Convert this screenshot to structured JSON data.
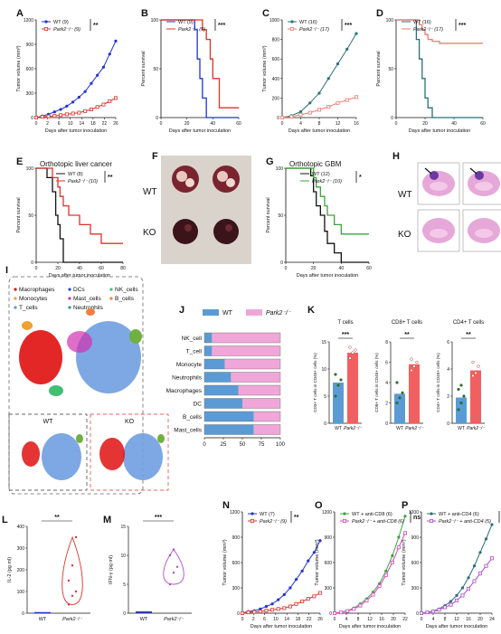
{
  "colors": {
    "wt_blue": "#1f33d6",
    "park2_red": "#e0312a",
    "wt_teal": "#2b6f7a",
    "park2_salmon": "#f07a70",
    "wt_dark": "#111111",
    "park2_green": "#3aa63a",
    "bar_blue": "#5b9bd5",
    "bar_pink": "#f0a6d8",
    "dot_green": "#2d6e2d",
    "violet": "#b04ad0",
    "tsne_red": "#e01010",
    "tsne_blue": "#6f9ee0"
  },
  "panels": {
    "A": {
      "label": "A",
      "legend": [
        "WT (9)",
        "Park2-/- (9)"
      ],
      "sig": "**",
      "ylabel": "Tumor volume (mm³)",
      "xlabel": "Days after tumor inoculation",
      "xticks": [
        "0",
        "2",
        "6",
        "10",
        "14",
        "18",
        "22",
        "26"
      ],
      "yticks": [
        "0",
        "300",
        "600",
        "900",
        "1200"
      ]
    },
    "B": {
      "label": "B",
      "legend": [
        "WT (9)",
        "Park2-/- (9)"
      ],
      "sig": "***",
      "ylabel": "Percent survival",
      "xlabel": "Days after tumor inoculation",
      "xticks": [
        "0",
        "20",
        "40",
        "60"
      ],
      "yticks": [
        "0",
        "50",
        "100"
      ]
    },
    "C": {
      "label": "C",
      "legend": [
        "WT (16)",
        "Park2-/- (17)"
      ],
      "sig": "***",
      "ylabel": "Tumor volume (mm³)",
      "xlabel": "Days after tumor inoculation",
      "xticks": [
        "0",
        "4",
        "8",
        "12",
        "16"
      ],
      "yticks": [
        "0",
        "200",
        "400",
        "600",
        "800",
        "1000"
      ]
    },
    "D": {
      "label": "D",
      "legend": [
        "WT (16)",
        "Park2-/- (17)"
      ],
      "sig": "***",
      "ylabel": "Percent survival",
      "xlabel": "Days after tumor inoculation",
      "xticks": [
        "0",
        "20",
        "40",
        "60"
      ],
      "yticks": [
        "0",
        "50",
        "100"
      ]
    },
    "E": {
      "label": "E",
      "title": "Orthotopic liver cancer",
      "legend": [
        "WT (8)",
        "Park2-/- (10)"
      ],
      "sig": "**",
      "ylabel": "Percent survival",
      "xlabel": "Days after tumor inoculation",
      "xticks": [
        "0",
        "20",
        "40",
        "60",
        "80"
      ],
      "yticks": [
        "0",
        "50",
        "100"
      ]
    },
    "F": {
      "label": "F",
      "rows": [
        "WT",
        "KO"
      ]
    },
    "G": {
      "label": "G",
      "title": "Orthotopic GBM",
      "legend": [
        "WT (12)",
        "Park2-/- (10)"
      ],
      "sig": "*",
      "ylabel": "Percent survival",
      "xlabel": "Days after tumor inoculation",
      "xticks": [
        "0",
        "20",
        "40",
        "60"
      ],
      "yticks": [
        "0",
        "50",
        "100"
      ]
    },
    "H": {
      "label": "H",
      "rows": [
        "WT",
        "KO"
      ]
    },
    "I": {
      "label": "I",
      "clusters": [
        "Macrophages",
        "DCs",
        "NK_cells",
        "Monocytes",
        "Mast_cells",
        "B_cells",
        "T_cells",
        "Neutrophils"
      ],
      "sub": [
        "WT",
        "KO"
      ]
    },
    "J": {
      "label": "J",
      "legend": [
        "WT",
        "Park2-/-"
      ],
      "xticks": [
        "0",
        "25",
        "50",
        "75",
        "100"
      ]
    },
    "K": {
      "label": "K",
      "sub1": {
        "title": "T cells",
        "ylabel": "CD3+ T cells in CD45+ cells (%)",
        "sig": "***",
        "yticks": [
          "0",
          "5",
          "10",
          "15"
        ],
        "cats": [
          "WT",
          "Park2-/-"
        ]
      },
      "sub2": {
        "title": "CD8+ T cells",
        "ylabel": "CD8+ T cells in CD45+ cells (%)",
        "sig": "**",
        "yticks": [
          "0",
          "2",
          "4",
          "6",
          "8"
        ],
        "cats": [
          "WT",
          "Park2-/-"
        ]
      },
      "sub3": {
        "title": "CD4+ T cells",
        "ylabel": "CD4+ T cells in CD45+ cells (%)",
        "sig": "**",
        "yticks": [
          "0",
          "2",
          "4",
          "6"
        ],
        "cats": [
          "WT",
          "Park2-/-"
        ]
      }
    },
    "L": {
      "label": "L",
      "sig": "**",
      "ylabel": "IL-2 (pg ml)",
      "yticks": [
        "0",
        "100",
        "200",
        "300",
        "400"
      ],
      "cats": [
        "WT",
        "Park2-/-"
      ]
    },
    "M": {
      "label": "M",
      "sig": "***",
      "ylabel": "IFN-γ (pg ml)",
      "yticks": [
        "0",
        "5",
        "10",
        "15"
      ],
      "cats": [
        "WT",
        "Park2-/-"
      ]
    },
    "N": {
      "label": "N",
      "legend": [
        "WT (7)",
        "Park2-/- (9)"
      ],
      "sig": "**",
      "ylabel": "Tumor volume (mm³)",
      "xlabel": "Days after tumor inoculation",
      "xticks": [
        "0",
        "2",
        "6",
        "10",
        "14",
        "18",
        "22",
        "26"
      ],
      "yticks": [
        "0",
        "300",
        "600",
        "900",
        "1200"
      ]
    },
    "O": {
      "label": "O",
      "legend": [
        "WT + anti-CD8 (6)",
        "Park2-/- + anti-CD8 (6)"
      ],
      "sig": "ns",
      "ylabel": "Tumor volume (mm³)",
      "xlabel": "Days after tumor inoculation",
      "xticks": [
        "0",
        "4",
        "8",
        "12",
        "16",
        "20",
        "22"
      ],
      "yticks": [
        "0",
        "300",
        "600",
        "900",
        "1200"
      ]
    },
    "P": {
      "label": "P",
      "legend": [
        "WT + anti-CD4 (6)",
        "Park2-/- + anti-CD4 (5)"
      ],
      "sig": "*",
      "ylabel": "Tumor volume (mm³)",
      "xlabel": "Days after tumor inoculation",
      "xticks": [
        "0",
        "4",
        "8",
        "12",
        "16",
        "20",
        "24"
      ],
      "yticks": [
        "0",
        "300",
        "600",
        "900",
        "1200"
      ]
    }
  },
  "chart_data": [
    {
      "panel": "A",
      "type": "line",
      "x": [
        0,
        2,
        4,
        6,
        8,
        10,
        12,
        14,
        16,
        18,
        20,
        22,
        24,
        26
      ],
      "series": [
        {
          "name": "WT (9)",
          "values": [
            0,
            20,
            40,
            70,
            100,
            140,
            190,
            250,
            320,
            420,
            520,
            620,
            780,
            940
          ]
        },
        {
          "name": "Park2-/- (9)",
          "values": [
            0,
            10,
            15,
            20,
            30,
            40,
            50,
            60,
            80,
            100,
            130,
            160,
            200,
            240
          ]
        }
      ],
      "ylim": [
        0,
        1200
      ],
      "xlim": [
        0,
        26
      ]
    },
    {
      "panel": "B",
      "type": "line",
      "x": [
        0,
        25,
        26,
        28,
        30,
        32,
        35,
        38,
        40,
        45,
        60
      ],
      "series": [
        {
          "name": "WT (9)",
          "values": [
            100,
            100,
            90,
            60,
            40,
            20,
            0,
            0,
            0,
            0,
            0
          ]
        },
        {
          "name": "Park2-/- (9)",
          "values": [
            100,
            100,
            100,
            100,
            100,
            90,
            80,
            60,
            40,
            10,
            10
          ]
        }
      ],
      "ylim": [
        0,
        100
      ],
      "xlim": [
        0,
        60
      ]
    },
    {
      "panel": "C",
      "type": "line",
      "x": [
        0,
        2,
        4,
        6,
        8,
        10,
        12,
        14,
        16
      ],
      "series": [
        {
          "name": "WT (16)",
          "values": [
            0,
            20,
            60,
            150,
            250,
            400,
            550,
            700,
            860
          ]
        },
        {
          "name": "Park2-/- (17)",
          "values": [
            0,
            10,
            30,
            50,
            80,
            110,
            150,
            180,
            210
          ]
        }
      ],
      "ylim": [
        0,
        1000
      ],
      "xlim": [
        0,
        16
      ]
    },
    {
      "panel": "D",
      "type": "line",
      "x": [
        0,
        10,
        14,
        16,
        18,
        20,
        22,
        25,
        30,
        60
      ],
      "series": [
        {
          "name": "WT (16)",
          "values": [
            100,
            100,
            80,
            60,
            40,
            20,
            10,
            0,
            0,
            0
          ]
        },
        {
          "name": "Park2-/- (17)",
          "values": [
            100,
            100,
            100,
            95,
            90,
            85,
            80,
            78,
            76,
            76
          ]
        }
      ],
      "ylim": [
        0,
        100
      ],
      "xlim": [
        0,
        60
      ]
    },
    {
      "panel": "E",
      "type": "line",
      "x": [
        0,
        10,
        15,
        18,
        20,
        22,
        25,
        30,
        40,
        50,
        60,
        70,
        80
      ],
      "series": [
        {
          "name": "WT (8)",
          "values": [
            100,
            90,
            75,
            50,
            40,
            25,
            0,
            0,
            0,
            0,
            0,
            0,
            0
          ]
        },
        {
          "name": "Park2-/- (10)",
          "values": [
            100,
            100,
            90,
            90,
            80,
            70,
            60,
            50,
            40,
            30,
            20,
            20,
            20
          ]
        }
      ],
      "ylim": [
        0,
        100
      ],
      "xlim": [
        0,
        80
      ]
    },
    {
      "panel": "G",
      "type": "line",
      "x": [
        0,
        15,
        18,
        20,
        22,
        25,
        28,
        30,
        35,
        40,
        50,
        60
      ],
      "series": [
        {
          "name": "WT (12)",
          "values": [
            100,
            100,
            92,
            75,
            60,
            50,
            33,
            20,
            10,
            0,
            0,
            0
          ]
        },
        {
          "name": "Park2-/- (10)",
          "values": [
            100,
            100,
            100,
            90,
            80,
            70,
            60,
            50,
            40,
            30,
            30,
            30
          ]
        }
      ],
      "ylim": [
        0,
        100
      ],
      "xlim": [
        0,
        60
      ]
    },
    {
      "panel": "J",
      "type": "bar",
      "categories": [
        "NK_cell",
        "T_cell",
        "Monocyte",
        "Neutrophils",
        "Macrophages",
        "DC",
        "B_cells",
        "Mast_cells"
      ],
      "series": [
        {
          "name": "WT",
          "values": [
            10,
            10,
            27,
            35,
            45,
            50,
            65,
            65
          ]
        },
        {
          "name": "Park2-/-",
          "values": [
            90,
            90,
            73,
            65,
            55,
            50,
            35,
            35
          ]
        }
      ],
      "xlim": [
        0,
        100
      ]
    },
    {
      "panel": "K1",
      "type": "bar",
      "categories": [
        "WT",
        "Park2-/-"
      ],
      "values": [
        7.5,
        13
      ],
      "points": [
        [
          5,
          7,
          8,
          9
        ],
        [
          12,
          13,
          13.5,
          14
        ]
      ],
      "ylim": [
        0,
        15
      ],
      "title": "T cells"
    },
    {
      "panel": "K2",
      "type": "bar",
      "categories": [
        "WT",
        "Park2-/-"
      ],
      "values": [
        2.9,
        5.8
      ],
      "points": [
        [
          2,
          2.5,
          3,
          4
        ],
        [
          5.2,
          5.6,
          6,
          6.3
        ]
      ],
      "ylim": [
        0,
        8
      ],
      "title": "CD8+ T cells"
    },
    {
      "panel": "K3",
      "type": "bar",
      "categories": [
        "WT",
        "Park2-/-"
      ],
      "values": [
        1.9,
        3.9
      ],
      "points": [
        [
          1,
          1.5,
          2,
          2.5,
          2.8
        ],
        [
          3.5,
          3.7,
          4.2,
          4.5
        ]
      ],
      "ylim": [
        0,
        6
      ],
      "title": "CD4+ T cells"
    },
    {
      "panel": "L",
      "type": "violin",
      "categories": [
        "WT",
        "Park2-/-"
      ],
      "points": [
        [
          2,
          3,
          3,
          4
        ],
        [
          40,
          80,
          100,
          150,
          220,
          350
        ]
      ],
      "ylim": [
        0,
        400
      ]
    },
    {
      "panel": "M",
      "type": "violin",
      "categories": [
        "WT",
        "Park2-/-"
      ],
      "points": [
        [
          0.2,
          0.3,
          0.3,
          0.4
        ],
        [
          5,
          7,
          8,
          10,
          11
        ]
      ],
      "ylim": [
        0,
        15
      ]
    },
    {
      "panel": "N",
      "type": "line",
      "x": [
        0,
        2,
        4,
        6,
        8,
        10,
        12,
        14,
        16,
        18,
        20,
        22,
        24,
        26
      ],
      "series": [
        {
          "name": "WT (7)",
          "values": [
            0,
            20,
            30,
            50,
            80,
            110,
            160,
            220,
            300,
            400,
            500,
            620,
            720,
            860
          ]
        },
        {
          "name": "Park2-/- (9)",
          "values": [
            0,
            10,
            15,
            20,
            30,
            40,
            50,
            60,
            80,
            110,
            140,
            170,
            200,
            240
          ]
        }
      ],
      "ylim": [
        0,
        1200
      ],
      "xlim": [
        0,
        26
      ]
    },
    {
      "panel": "O",
      "type": "line",
      "x": [
        0,
        2,
        4,
        6,
        8,
        10,
        12,
        14,
        16,
        18,
        20,
        22
      ],
      "series": [
        {
          "name": "WT + anti-CD8 (6)",
          "values": [
            0,
            10,
            30,
            60,
            110,
            170,
            250,
            350,
            500,
            680,
            900,
            1150
          ]
        },
        {
          "name": "Park2-/- + anti-CD8 (6)",
          "values": [
            0,
            10,
            25,
            50,
            90,
            150,
            220,
            320,
            450,
            600,
            780,
            950
          ]
        }
      ],
      "ylim": [
        0,
        1200
      ],
      "xlim": [
        0,
        22
      ]
    },
    {
      "panel": "P",
      "type": "line",
      "x": [
        0,
        2,
        4,
        6,
        8,
        10,
        12,
        14,
        16,
        18,
        20,
        22,
        24
      ],
      "series": [
        {
          "name": "WT + anti-CD4 (6)",
          "values": [
            0,
            10,
            25,
            50,
            90,
            140,
            210,
            300,
            420,
            560,
            720,
            880,
            1050
          ]
        },
        {
          "name": "Park2-/- + anti-CD4 (5)",
          "values": [
            0,
            10,
            20,
            40,
            70,
            100,
            150,
            210,
            290,
            380,
            470,
            560,
            650
          ]
        }
      ],
      "ylim": [
        0,
        1200
      ],
      "xlim": [
        0,
        24
      ]
    }
  ]
}
